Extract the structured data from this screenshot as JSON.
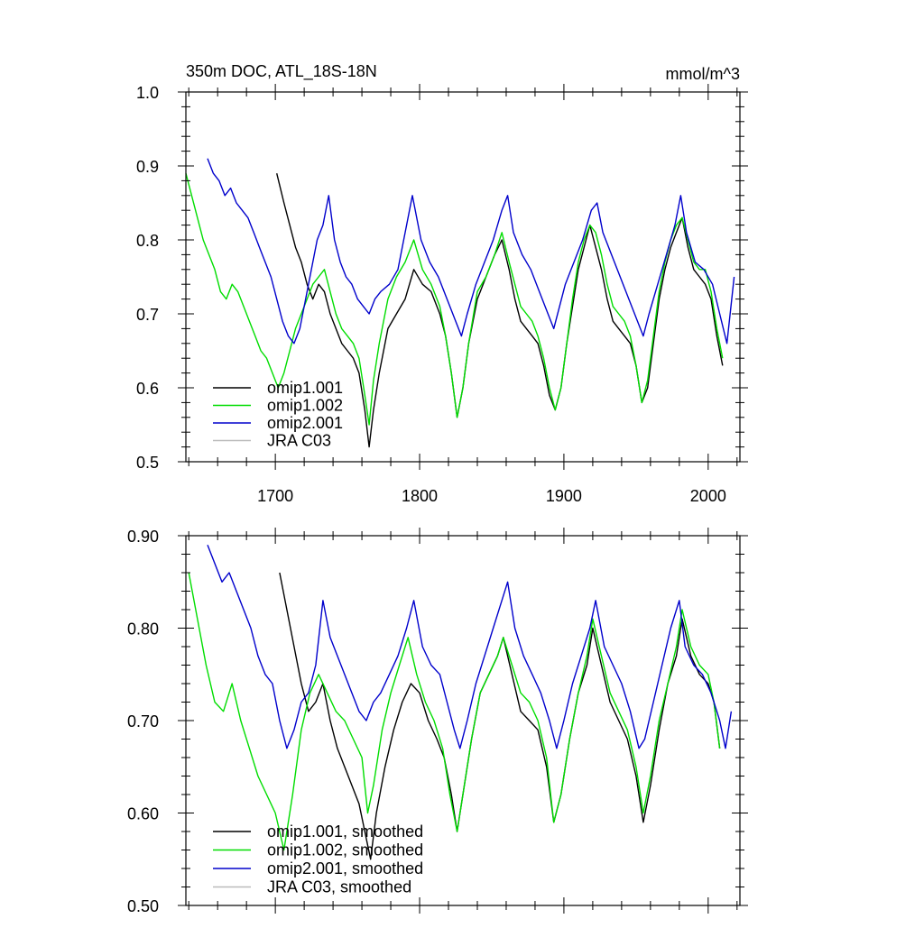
{
  "chart_data": [
    {
      "type": "line",
      "title": "350m DOC, ATL_18S-18N",
      "units": "mmol/m^3",
      "xlim": [
        1638,
        2022
      ],
      "ylim": [
        0.5,
        1.0
      ],
      "xticks": [
        1700,
        1800,
        1900,
        2000
      ],
      "xtick_labels": [
        "1700",
        "1800",
        "1900",
        "2000"
      ],
      "yticks": [
        0.5,
        0.6,
        0.7,
        0.8,
        0.9,
        1.0
      ],
      "ytick_labels": [
        "0.5",
        "0.6",
        "0.7",
        "0.8",
        "0.9",
        "1.0"
      ],
      "legend_position": "bottom-left",
      "series": [
        {
          "name": "omip1.001",
          "color": "#000000",
          "x": [
            1701,
            1706,
            1710,
            1714,
            1718,
            1722,
            1726,
            1730,
            1734,
            1738,
            1742,
            1746,
            1750,
            1754,
            1758,
            1762,
            1765,
            1768,
            1772,
            1778,
            1784,
            1790,
            1796,
            1802,
            1808,
            1814,
            1818,
            1822,
            1826,
            1830,
            1834,
            1840,
            1846,
            1852,
            1857,
            1862,
            1866,
            1870,
            1874,
            1878,
            1882,
            1886,
            1890,
            1894,
            1898,
            1902,
            1906,
            1910,
            1914,
            1918,
            1922,
            1926,
            1930,
            1934,
            1938,
            1942,
            1946,
            1950,
            1954,
            1958,
            1962,
            1966,
            1970,
            1974,
            1978,
            1982,
            1986,
            1990,
            1994,
            1998,
            2002,
            2006,
            2010
          ],
          "y": [
            0.89,
            0.85,
            0.82,
            0.79,
            0.77,
            0.74,
            0.72,
            0.74,
            0.73,
            0.7,
            0.68,
            0.66,
            0.65,
            0.64,
            0.62,
            0.57,
            0.52,
            0.57,
            0.62,
            0.68,
            0.7,
            0.72,
            0.76,
            0.74,
            0.73,
            0.7,
            0.67,
            0.62,
            0.56,
            0.6,
            0.66,
            0.72,
            0.75,
            0.78,
            0.8,
            0.76,
            0.72,
            0.69,
            0.68,
            0.67,
            0.66,
            0.63,
            0.59,
            0.57,
            0.6,
            0.66,
            0.71,
            0.76,
            0.79,
            0.82,
            0.79,
            0.76,
            0.72,
            0.69,
            0.68,
            0.67,
            0.66,
            0.63,
            0.58,
            0.6,
            0.66,
            0.72,
            0.76,
            0.79,
            0.81,
            0.83,
            0.79,
            0.76,
            0.75,
            0.74,
            0.72,
            0.67,
            0.63
          ]
        },
        {
          "name": "omip1.002",
          "color": "#00dd00",
          "x": [
            1638,
            1642,
            1646,
            1650,
            1654,
            1658,
            1662,
            1666,
            1670,
            1674,
            1678,
            1682,
            1686,
            1690,
            1694,
            1698,
            1702,
            1706,
            1710,
            1714,
            1718,
            1722,
            1726,
            1730,
            1734,
            1738,
            1742,
            1746,
            1750,
            1754,
            1758,
            1762,
            1765,
            1768,
            1772,
            1778,
            1784,
            1790,
            1796,
            1802,
            1808,
            1814,
            1818,
            1822,
            1826,
            1830,
            1834,
            1840,
            1846,
            1852,
            1857,
            1862,
            1866,
            1870,
            1874,
            1878,
            1882,
            1886,
            1890,
            1894,
            1898,
            1902,
            1906,
            1910,
            1914,
            1918,
            1922,
            1926,
            1930,
            1934,
            1938,
            1942,
            1946,
            1950,
            1954,
            1958,
            1962,
            1966,
            1970,
            1974,
            1978,
            1982,
            1986,
            1990,
            1994,
            1998,
            2002,
            2006,
            2010
          ],
          "y": [
            0.89,
            0.86,
            0.83,
            0.8,
            0.78,
            0.76,
            0.73,
            0.72,
            0.74,
            0.73,
            0.71,
            0.69,
            0.67,
            0.65,
            0.64,
            0.62,
            0.6,
            0.62,
            0.65,
            0.68,
            0.7,
            0.72,
            0.74,
            0.75,
            0.76,
            0.73,
            0.7,
            0.68,
            0.67,
            0.66,
            0.64,
            0.59,
            0.55,
            0.61,
            0.66,
            0.72,
            0.75,
            0.77,
            0.8,
            0.76,
            0.74,
            0.71,
            0.67,
            0.62,
            0.56,
            0.6,
            0.66,
            0.73,
            0.75,
            0.78,
            0.81,
            0.77,
            0.74,
            0.71,
            0.7,
            0.69,
            0.67,
            0.64,
            0.6,
            0.57,
            0.6,
            0.66,
            0.72,
            0.77,
            0.8,
            0.82,
            0.81,
            0.78,
            0.74,
            0.71,
            0.7,
            0.69,
            0.67,
            0.63,
            0.58,
            0.61,
            0.67,
            0.73,
            0.77,
            0.8,
            0.82,
            0.83,
            0.8,
            0.77,
            0.76,
            0.76,
            0.73,
            0.68,
            0.64
          ]
        },
        {
          "name": "omip2.001",
          "color": "#0000cc",
          "x": [
            1653,
            1657,
            1661,
            1665,
            1669,
            1673,
            1677,
            1681,
            1685,
            1689,
            1693,
            1697,
            1701,
            1705,
            1709,
            1713,
            1717,
            1721,
            1725,
            1729,
            1733,
            1737,
            1741,
            1745,
            1749,
            1753,
            1757,
            1761,
            1765,
            1769,
            1773,
            1779,
            1785,
            1791,
            1795,
            1801,
            1807,
            1813,
            1819,
            1825,
            1829,
            1833,
            1839,
            1845,
            1851,
            1857,
            1861,
            1865,
            1871,
            1877,
            1883,
            1889,
            1893,
            1897,
            1901,
            1907,
            1913,
            1919,
            1923,
            1927,
            1933,
            1939,
            1945,
            1951,
            1955,
            1959,
            1965,
            1971,
            1977,
            1981,
            1985,
            1991,
            1997,
            2003,
            2008,
            2013,
            2018
          ],
          "y": [
            0.91,
            0.89,
            0.88,
            0.86,
            0.87,
            0.85,
            0.84,
            0.83,
            0.81,
            0.79,
            0.77,
            0.75,
            0.72,
            0.69,
            0.67,
            0.66,
            0.68,
            0.72,
            0.76,
            0.8,
            0.82,
            0.86,
            0.8,
            0.77,
            0.75,
            0.74,
            0.72,
            0.71,
            0.7,
            0.72,
            0.73,
            0.74,
            0.76,
            0.82,
            0.86,
            0.8,
            0.77,
            0.75,
            0.72,
            0.69,
            0.67,
            0.7,
            0.74,
            0.77,
            0.8,
            0.84,
            0.86,
            0.81,
            0.78,
            0.76,
            0.73,
            0.7,
            0.68,
            0.71,
            0.74,
            0.77,
            0.8,
            0.84,
            0.85,
            0.81,
            0.78,
            0.75,
            0.72,
            0.69,
            0.67,
            0.7,
            0.74,
            0.78,
            0.82,
            0.86,
            0.81,
            0.77,
            0.76,
            0.74,
            0.7,
            0.66,
            0.75
          ]
        },
        {
          "name": "JRA C03",
          "color": "#bbbbbb",
          "x": [],
          "y": []
        }
      ]
    },
    {
      "type": "line",
      "title": "",
      "xlim": [
        1638,
        2022
      ],
      "ylim": [
        0.5,
        0.9
      ],
      "xticks": [
        1700,
        1800,
        1900,
        2000
      ],
      "xtick_labels": [],
      "yticks": [
        0.5,
        0.6,
        0.7,
        0.8,
        0.9
      ],
      "ytick_labels": [
        "0.50",
        "0.60",
        "0.70",
        "0.80",
        "0.90"
      ],
      "legend_position": "bottom-left",
      "series": [
        {
          "name": "omip1.001, smoothed",
          "color": "#000000",
          "x": [
            1703,
            1708,
            1713,
            1718,
            1723,
            1728,
            1733,
            1738,
            1743,
            1748,
            1753,
            1758,
            1762,
            1766,
            1770,
            1776,
            1782,
            1788,
            1794,
            1800,
            1806,
            1812,
            1817,
            1822,
            1826,
            1830,
            1836,
            1842,
            1848,
            1854,
            1858,
            1864,
            1870,
            1876,
            1882,
            1888,
            1893,
            1898,
            1904,
            1910,
            1916,
            1920,
            1926,
            1932,
            1938,
            1944,
            1950,
            1955,
            1960,
            1966,
            1972,
            1978,
            1982,
            1988,
            1994,
            2000,
            2004,
            2008
          ],
          "y": [
            0.86,
            0.82,
            0.78,
            0.74,
            0.71,
            0.72,
            0.74,
            0.7,
            0.67,
            0.65,
            0.63,
            0.61,
            0.58,
            0.55,
            0.6,
            0.65,
            0.69,
            0.72,
            0.74,
            0.73,
            0.7,
            0.68,
            0.66,
            0.62,
            0.58,
            0.62,
            0.68,
            0.73,
            0.75,
            0.77,
            0.79,
            0.75,
            0.71,
            0.7,
            0.69,
            0.65,
            0.59,
            0.62,
            0.68,
            0.73,
            0.76,
            0.8,
            0.76,
            0.72,
            0.7,
            0.68,
            0.64,
            0.59,
            0.63,
            0.69,
            0.74,
            0.77,
            0.81,
            0.77,
            0.75,
            0.74,
            0.72,
            0.67
          ]
        },
        {
          "name": "omip1.002, smoothed",
          "color": "#00dd00",
          "x": [
            1640,
            1646,
            1652,
            1658,
            1664,
            1670,
            1676,
            1682,
            1688,
            1694,
            1700,
            1706,
            1712,
            1718,
            1724,
            1730,
            1736,
            1742,
            1748,
            1754,
            1760,
            1764,
            1768,
            1774,
            1780,
            1786,
            1792,
            1798,
            1804,
            1810,
            1816,
            1821,
            1826,
            1830,
            1836,
            1842,
            1848,
            1854,
            1858,
            1864,
            1870,
            1876,
            1882,
            1888,
            1893,
            1898,
            1904,
            1910,
            1916,
            1920,
            1926,
            1932,
            1938,
            1944,
            1950,
            1955,
            1960,
            1966,
            1972,
            1978,
            1982,
            1988,
            1994,
            2000,
            2004,
            2008
          ],
          "y": [
            0.86,
            0.81,
            0.76,
            0.72,
            0.71,
            0.74,
            0.7,
            0.67,
            0.64,
            0.62,
            0.6,
            0.56,
            0.62,
            0.69,
            0.73,
            0.75,
            0.73,
            0.71,
            0.7,
            0.68,
            0.66,
            0.6,
            0.63,
            0.69,
            0.73,
            0.76,
            0.79,
            0.75,
            0.72,
            0.7,
            0.67,
            0.62,
            0.58,
            0.62,
            0.68,
            0.73,
            0.75,
            0.77,
            0.79,
            0.76,
            0.73,
            0.72,
            0.7,
            0.66,
            0.59,
            0.62,
            0.68,
            0.73,
            0.77,
            0.81,
            0.77,
            0.73,
            0.71,
            0.69,
            0.65,
            0.6,
            0.64,
            0.7,
            0.74,
            0.78,
            0.82,
            0.78,
            0.76,
            0.75,
            0.72,
            0.67
          ]
        },
        {
          "name": "omip2.001, smoothed",
          "color": "#0000cc",
          "x": [
            1653,
            1658,
            1663,
            1668,
            1673,
            1678,
            1683,
            1688,
            1693,
            1698,
            1703,
            1708,
            1713,
            1718,
            1723,
            1728,
            1733,
            1738,
            1743,
            1748,
            1753,
            1758,
            1763,
            1768,
            1773,
            1779,
            1785,
            1791,
            1796,
            1802,
            1808,
            1814,
            1819,
            1824,
            1828,
            1833,
            1839,
            1845,
            1851,
            1857,
            1861,
            1866,
            1872,
            1878,
            1884,
            1890,
            1895,
            1900,
            1906,
            1912,
            1918,
            1922,
            1928,
            1934,
            1940,
            1946,
            1952,
            1956,
            1962,
            1968,
            1974,
            1980,
            1984,
            1990,
            1996,
            2002,
            2008,
            2012,
            2016
          ],
          "y": [
            0.89,
            0.87,
            0.85,
            0.86,
            0.84,
            0.82,
            0.8,
            0.77,
            0.75,
            0.74,
            0.7,
            0.67,
            0.69,
            0.72,
            0.73,
            0.76,
            0.83,
            0.79,
            0.77,
            0.75,
            0.73,
            0.71,
            0.7,
            0.72,
            0.73,
            0.75,
            0.77,
            0.8,
            0.83,
            0.78,
            0.76,
            0.75,
            0.72,
            0.69,
            0.67,
            0.7,
            0.74,
            0.77,
            0.8,
            0.83,
            0.85,
            0.8,
            0.77,
            0.75,
            0.73,
            0.7,
            0.67,
            0.7,
            0.74,
            0.77,
            0.8,
            0.83,
            0.78,
            0.76,
            0.74,
            0.71,
            0.67,
            0.68,
            0.72,
            0.76,
            0.8,
            0.83,
            0.78,
            0.76,
            0.75,
            0.73,
            0.7,
            0.67,
            0.71
          ]
        },
        {
          "name": "JRA C03, smoothed",
          "color": "#bbbbbb",
          "x": [],
          "y": []
        }
      ]
    }
  ]
}
